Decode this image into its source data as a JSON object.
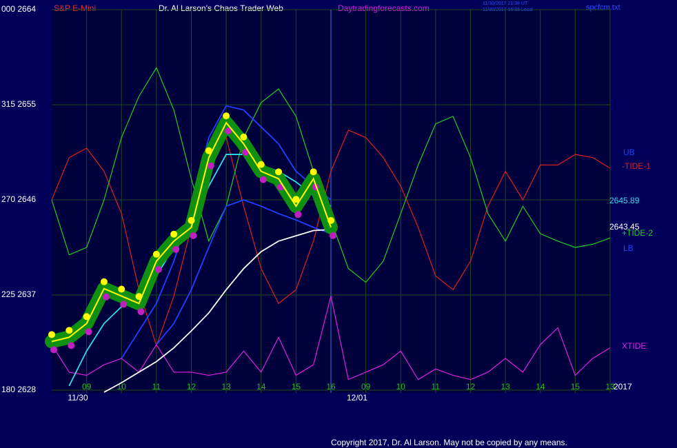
{
  "header": {
    "symbol": "S&P E-Mini",
    "title": "Dr. Al Larson's Chaos Trader Web",
    "site": "Daytradingforecasts.com",
    "stamp_ut": "11/30/2017 21:38 UT",
    "stamp_local": "11/30/2017 16:38 Local",
    "file": "spcfcm.txt"
  },
  "chart_data": {
    "type": "line",
    "categories": [
      null,
      null,
      "09",
      null,
      "10",
      null,
      "11",
      null,
      "12",
      null,
      "13",
      null,
      "14",
      null,
      "15",
      null,
      "16",
      null,
      "09",
      null,
      "10",
      null,
      "11",
      null,
      "12",
      null,
      "13",
      null,
      "14",
      null,
      "15",
      null,
      "13"
    ],
    "dates": [
      "11/30",
      "12/01"
    ],
    "year": "2017",
    "ylim": [
      2628,
      2664
    ],
    "yticks": [
      {
        "value": 2628,
        "label": "180  2628"
      },
      {
        "value": 2637,
        "label": "225  2637"
      },
      {
        "value": 2646,
        "label": "270  2646"
      },
      {
        "value": 2655,
        "label": "315  2655"
      },
      {
        "value": 2664,
        "label": "000  2664"
      }
    ],
    "grid": true,
    "series": [
      {
        "name": "-TIDE-1",
        "color": "#e02020",
        "values": [
          2646.0,
          2650.0,
          2650.9,
          2648.7,
          2644.7,
          2637.5,
          2632.2,
          2636.9,
          2643.4,
          2650.9,
          2651.9,
          2645.4,
          2639.5,
          2636.2,
          2637.5,
          2642.1,
          2648.7,
          2652.6,
          2651.9,
          2650.0,
          2647.3,
          2643.4,
          2638.8,
          2637.5,
          2640.2,
          2645.4,
          2648.7,
          2646.0,
          2649.3,
          2649.3,
          2650.3,
          2650.0,
          2649.0
        ]
      },
      {
        "name": "+TIDE-2",
        "color": "#20d020",
        "values": [
          2646.0,
          2640.8,
          2641.5,
          2646.0,
          2651.9,
          2655.8,
          2658.5,
          2654.5,
          2648.0,
          2642.1,
          2645.4,
          2651.9,
          2655.2,
          2656.5,
          2653.9,
          2648.7,
          2644.1,
          2639.5,
          2638.2,
          2640.2,
          2644.7,
          2649.3,
          2653.2,
          2653.9,
          2650.0,
          2644.7,
          2642.1,
          2645.4,
          2642.8,
          2642.1,
          2641.5,
          2641.8,
          2642.4
        ]
      },
      {
        "name": "XTIDE",
        "color": "#e020e0",
        "values": [
          2632.3,
          2629.7,
          2629.4,
          2630.4,
          2631.0,
          2629.7,
          2632.3,
          2629.7,
          2629.7,
          2629.4,
          2629.7,
          2631.7,
          2629.7,
          2633.0,
          2629.4,
          2630.4,
          2636.9,
          2629.0,
          2629.7,
          2630.4,
          2631.7,
          2629.0,
          2630.0,
          2629.4,
          2629.0,
          2629.7,
          2631.0,
          2629.7,
          2632.3,
          2633.9,
          2629.4,
          2631.0,
          2632.0
        ]
      },
      {
        "name": "UB",
        "color": "#2040ff",
        "values": [
          null,
          null,
          null,
          null,
          2631.0,
          2633.6,
          2636.2,
          2640.2,
          2645.4,
          2651.9,
          2654.9,
          2654.5,
          2652.9,
          2651.3,
          2648.7,
          2647.3,
          2646.0,
          null,
          null,
          null,
          null,
          null,
          null,
          null,
          null,
          null,
          null,
          null,
          null,
          null,
          null,
          null,
          null
        ]
      },
      {
        "name": "LB",
        "color": "#2040ff",
        "values": [
          null,
          null,
          null,
          null,
          null,
          null,
          2632.3,
          2634.3,
          2637.5,
          2641.5,
          2645.4,
          2646.0,
          2645.4,
          2644.7,
          2644.1,
          2643.4,
          2642.8,
          null,
          null,
          null,
          null,
          null,
          null,
          null,
          null,
          null,
          null,
          null,
          null,
          null,
          null,
          null,
          null
        ]
      },
      {
        "color": "#30e0f0",
        "value_labels": "2645.89",
        "values": [
          null,
          2628.4,
          2631.7,
          2634.3,
          2635.9,
          2637.2,
          2638.8,
          2641.5,
          2643.4,
          2647.3,
          2650.3,
          2650.3,
          2649.3,
          2648.7,
          2647.7,
          2646.4,
          2645.4,
          null,
          null,
          null,
          null,
          null,
          null,
          null,
          null,
          null,
          null,
          null,
          null,
          null,
          null,
          null,
          null
        ]
      },
      {
        "color": "#ffffff",
        "value_labels": "2643.45",
        "values": [
          null,
          null,
          null,
          2627.8,
          2628.7,
          2629.7,
          2630.7,
          2632.0,
          2633.6,
          2635.3,
          2637.5,
          2639.5,
          2641.1,
          2642.1,
          2642.6,
          2643.1,
          2643.2,
          null,
          null,
          null,
          null,
          null,
          null,
          null,
          null,
          null,
          null,
          null,
          null,
          null,
          null,
          null,
          null
        ]
      },
      {
        "color": "#ffff00",
        "style": "price",
        "values": [
          2632.6,
          2633.0,
          2634.3,
          2637.6,
          2636.9,
          2636.2,
          2640.2,
          2642.1,
          2643.4,
          2650.0,
          2653.3,
          2651.3,
          2648.7,
          2648.0,
          2645.4,
          2648.0,
          2643.4,
          null,
          null,
          null,
          null,
          null,
          null,
          null,
          null,
          null,
          null,
          null,
          null,
          null,
          null,
          null,
          null
        ]
      }
    ]
  },
  "footer": "Copyright 2017, Dr. Al Larson. May not be copied by any means."
}
